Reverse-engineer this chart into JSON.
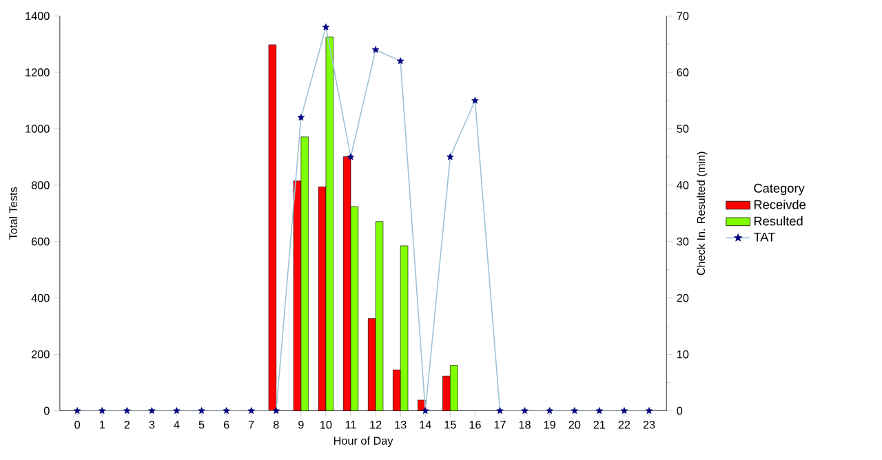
{
  "chart_data": {
    "type": "bar",
    "xlabel": "Hour of Day",
    "ylabel": "Total Tests",
    "y2label": "Check In. Resulted (min)",
    "legend_title": "Category",
    "legend": "right",
    "categories": [
      "0",
      "1",
      "2",
      "3",
      "4",
      "5",
      "6",
      "7",
      "8",
      "9",
      "10",
      "11",
      "12",
      "13",
      "14",
      "15",
      "16",
      "17",
      "18",
      "19",
      "20",
      "21",
      "22",
      "23"
    ],
    "series": [
      {
        "name": "Receivde",
        "color": "#ff0000",
        "values": [
          null,
          null,
          null,
          null,
          null,
          null,
          null,
          null,
          1298,
          815,
          794,
          901,
          327,
          145,
          38,
          123,
          null,
          null,
          null,
          null,
          null,
          null,
          null,
          null
        ]
      },
      {
        "name": "Resulted",
        "color": "#80ff00",
        "values": [
          null,
          null,
          null,
          null,
          null,
          null,
          null,
          null,
          null,
          971,
          1325,
          724,
          671,
          585,
          null,
          161,
          null,
          null,
          null,
          null,
          null,
          null,
          null,
          null
        ]
      },
      {
        "name": "TAT",
        "type": "line",
        "axis": "y2",
        "color": "#9fc3d6",
        "marker": "star",
        "values": [
          0,
          0,
          0,
          0,
          0,
          0,
          0,
          0,
          0,
          52,
          68,
          45,
          64,
          62,
          0,
          45,
          55,
          0,
          0,
          0,
          0,
          0,
          0,
          0
        ]
      }
    ],
    "ylim": [
      0,
      1400
    ],
    "yticks": [
      0,
      200,
      400,
      600,
      800,
      1000,
      1200,
      1400
    ],
    "y2lim": [
      0,
      70
    ],
    "y2ticks": [
      0,
      10,
      20,
      30,
      40,
      50,
      60,
      70
    ]
  }
}
